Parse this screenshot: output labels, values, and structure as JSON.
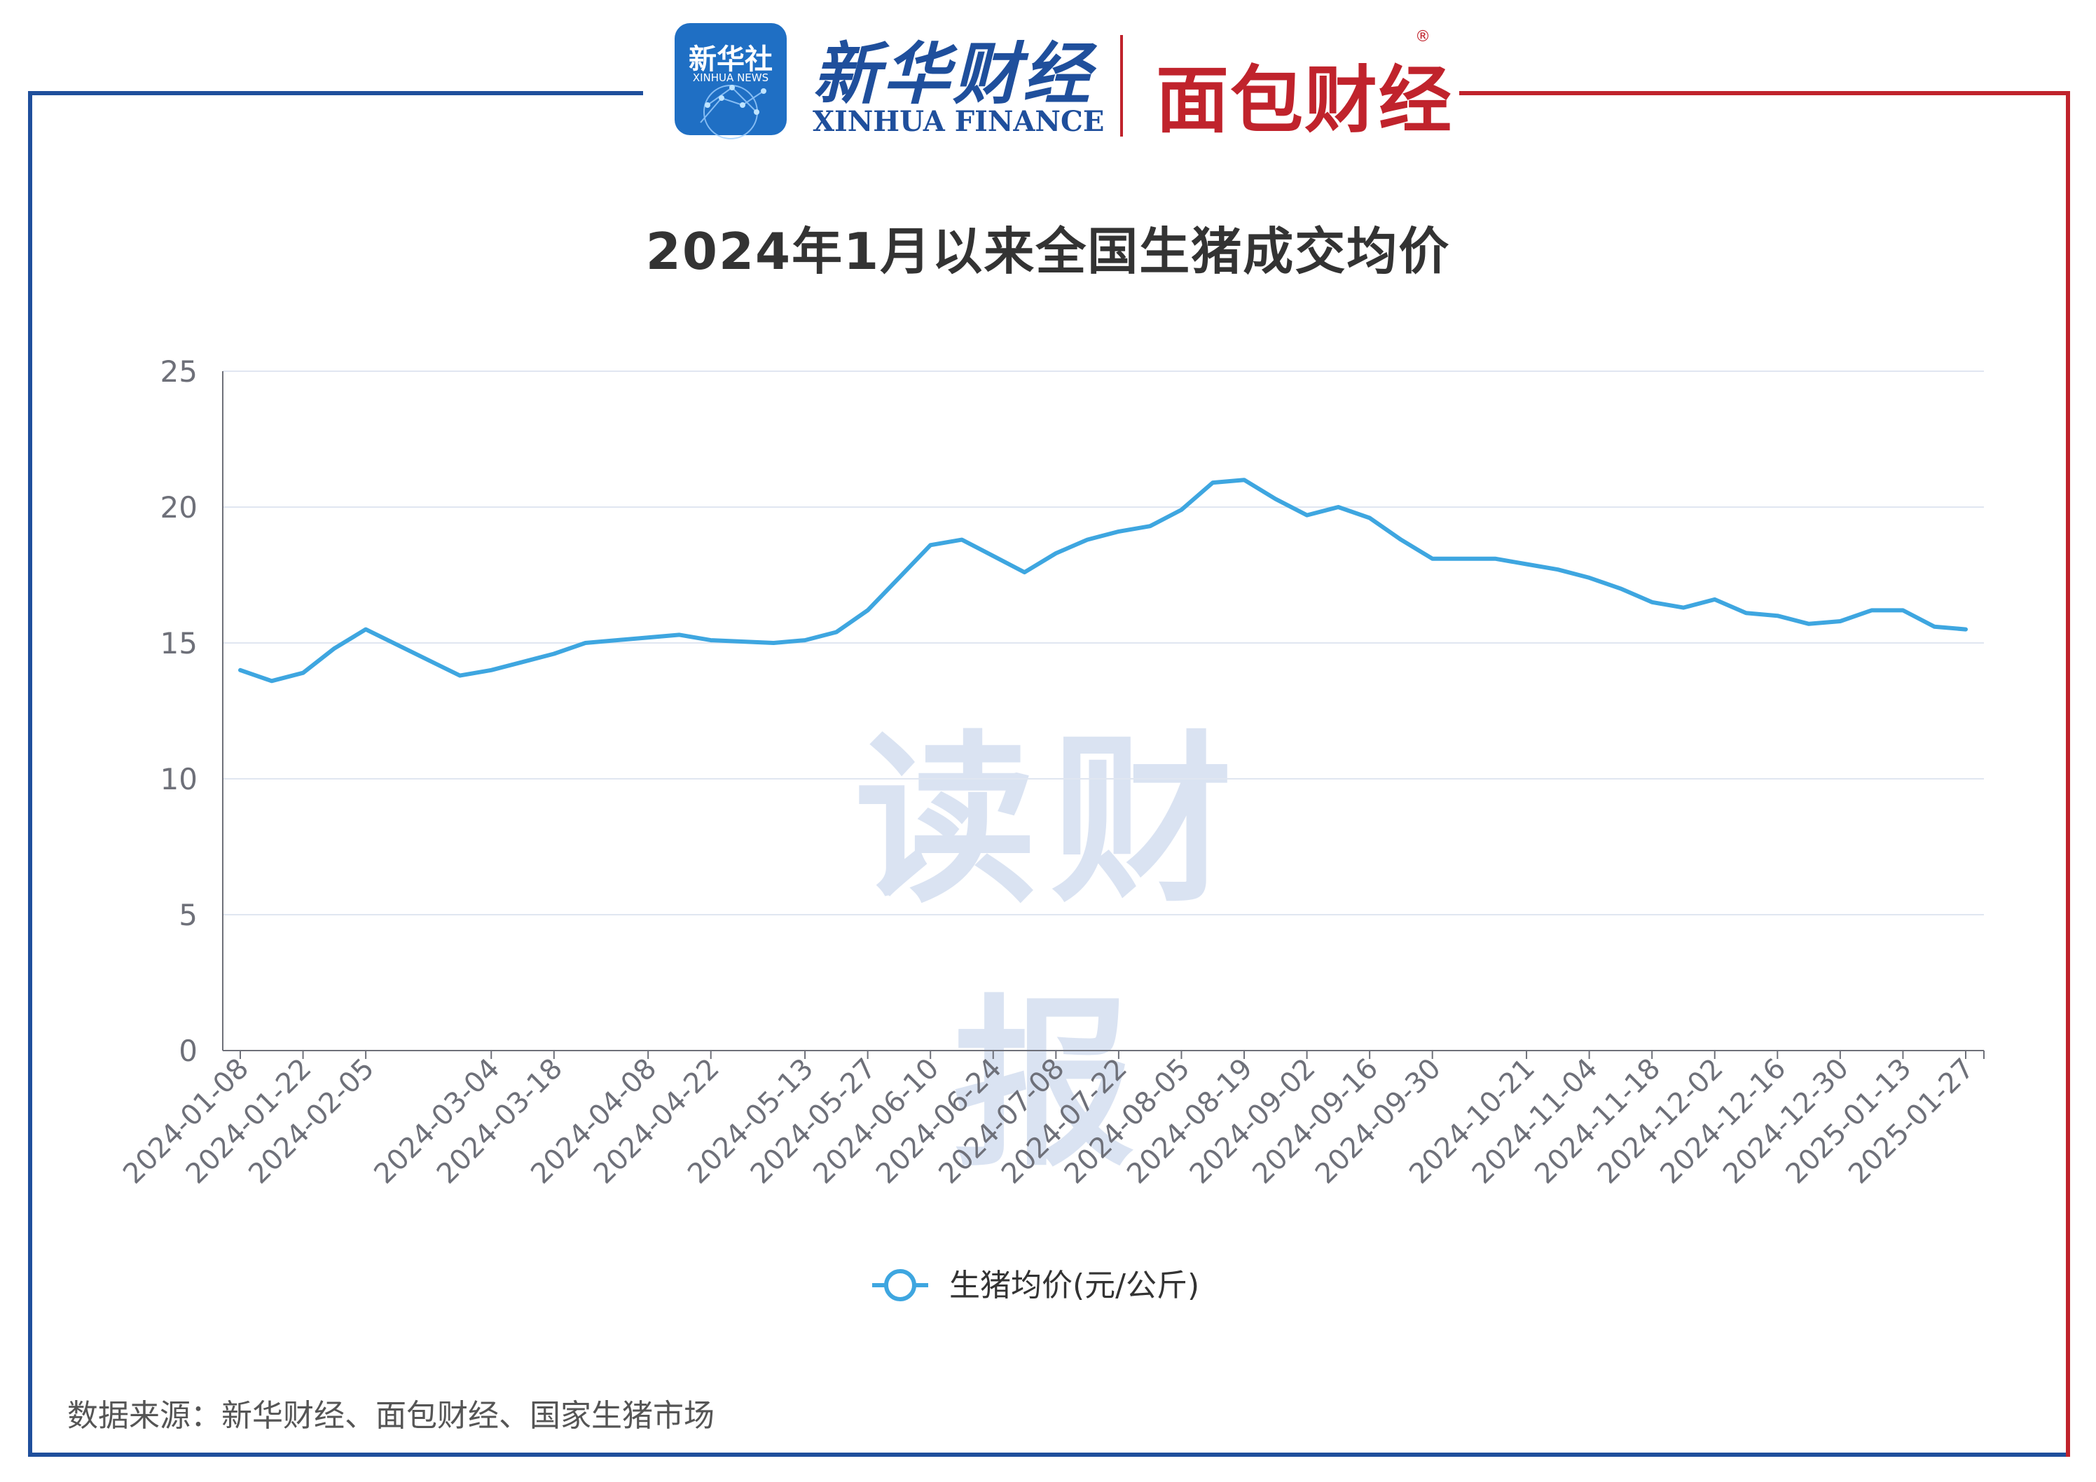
{
  "header": {
    "xinhua_news_badge": "新华社",
    "xinhua_news_badge_en": "XINHUA NEWS",
    "xinhua_finance_cn": "新华财经",
    "xinhua_finance_en": "XINHUA FINANCE",
    "mianbao_finance": "面包财经",
    "brand_blue": "#1f4f9c",
    "brand_red": "#c0232c"
  },
  "watermark": "读财报",
  "source_note": "数据来源：新华财经、面包财经、国家生猪市场",
  "chart_data": {
    "type": "line",
    "title": "2024年1月以来全国生猪成交均价",
    "xlabel": "",
    "ylabel": "",
    "ylim": [
      0,
      25
    ],
    "yticks": [
      0,
      5,
      10,
      15,
      20,
      25
    ],
    "grid": true,
    "legend_position": "bottom-center",
    "line_color": "#3ea6e0",
    "x_tick_labels": [
      "2024-01-08",
      "2024-01-22",
      "2024-02-05",
      "2024-03-04",
      "2024-03-18",
      "2024-04-08",
      "2024-04-22",
      "2024-05-13",
      "2024-05-27",
      "2024-06-10",
      "2024-06-24",
      "2024-07-08",
      "2024-07-22",
      "2024-08-05",
      "2024-08-19",
      "2024-09-02",
      "2024-09-16",
      "2024-09-30",
      "2024-10-21",
      "2024-11-04",
      "2024-11-18",
      "2024-12-02",
      "2024-12-16",
      "2024-12-30",
      "2025-01-13",
      "2025-01-27"
    ],
    "x": [
      "2024-01-08",
      "2024-01-15",
      "2024-01-22",
      "2024-01-29",
      "2024-02-05",
      "2024-02-26",
      "2024-03-04",
      "2024-03-11",
      "2024-03-18",
      "2024-03-25",
      "2024-04-08",
      "2024-04-15",
      "2024-04-22",
      "2024-05-06",
      "2024-05-13",
      "2024-05-20",
      "2024-05-27",
      "2024-06-03",
      "2024-06-10",
      "2024-06-17",
      "2024-06-24",
      "2024-07-01",
      "2024-07-08",
      "2024-07-15",
      "2024-07-22",
      "2024-07-29",
      "2024-08-05",
      "2024-08-12",
      "2024-08-19",
      "2024-08-26",
      "2024-09-02",
      "2024-09-09",
      "2024-09-16",
      "2024-09-23",
      "2024-09-30",
      "2024-10-14",
      "2024-10-21",
      "2024-10-28",
      "2024-11-04",
      "2024-11-11",
      "2024-11-18",
      "2024-11-25",
      "2024-12-02",
      "2024-12-09",
      "2024-12-16",
      "2024-12-23",
      "2024-12-30",
      "2025-01-06",
      "2025-01-13",
      "2025-01-20",
      "2025-01-27"
    ],
    "series": [
      {
        "name": "生猪均价(元/公斤)",
        "values": [
          14.0,
          13.6,
          13.9,
          14.8,
          15.5,
          13.8,
          14.0,
          14.3,
          14.6,
          15.0,
          15.2,
          15.3,
          15.1,
          15.0,
          15.1,
          15.4,
          16.2,
          17.4,
          18.6,
          18.8,
          18.2,
          17.6,
          18.3,
          18.8,
          19.1,
          19.3,
          19.9,
          20.9,
          21.0,
          20.3,
          19.7,
          20.0,
          19.6,
          18.8,
          18.1,
          18.1,
          17.9,
          17.7,
          17.4,
          17.0,
          16.5,
          16.3,
          16.6,
          16.1,
          16.0,
          15.7,
          15.8,
          16.2,
          16.2,
          15.6,
          15.5
        ]
      }
    ]
  }
}
